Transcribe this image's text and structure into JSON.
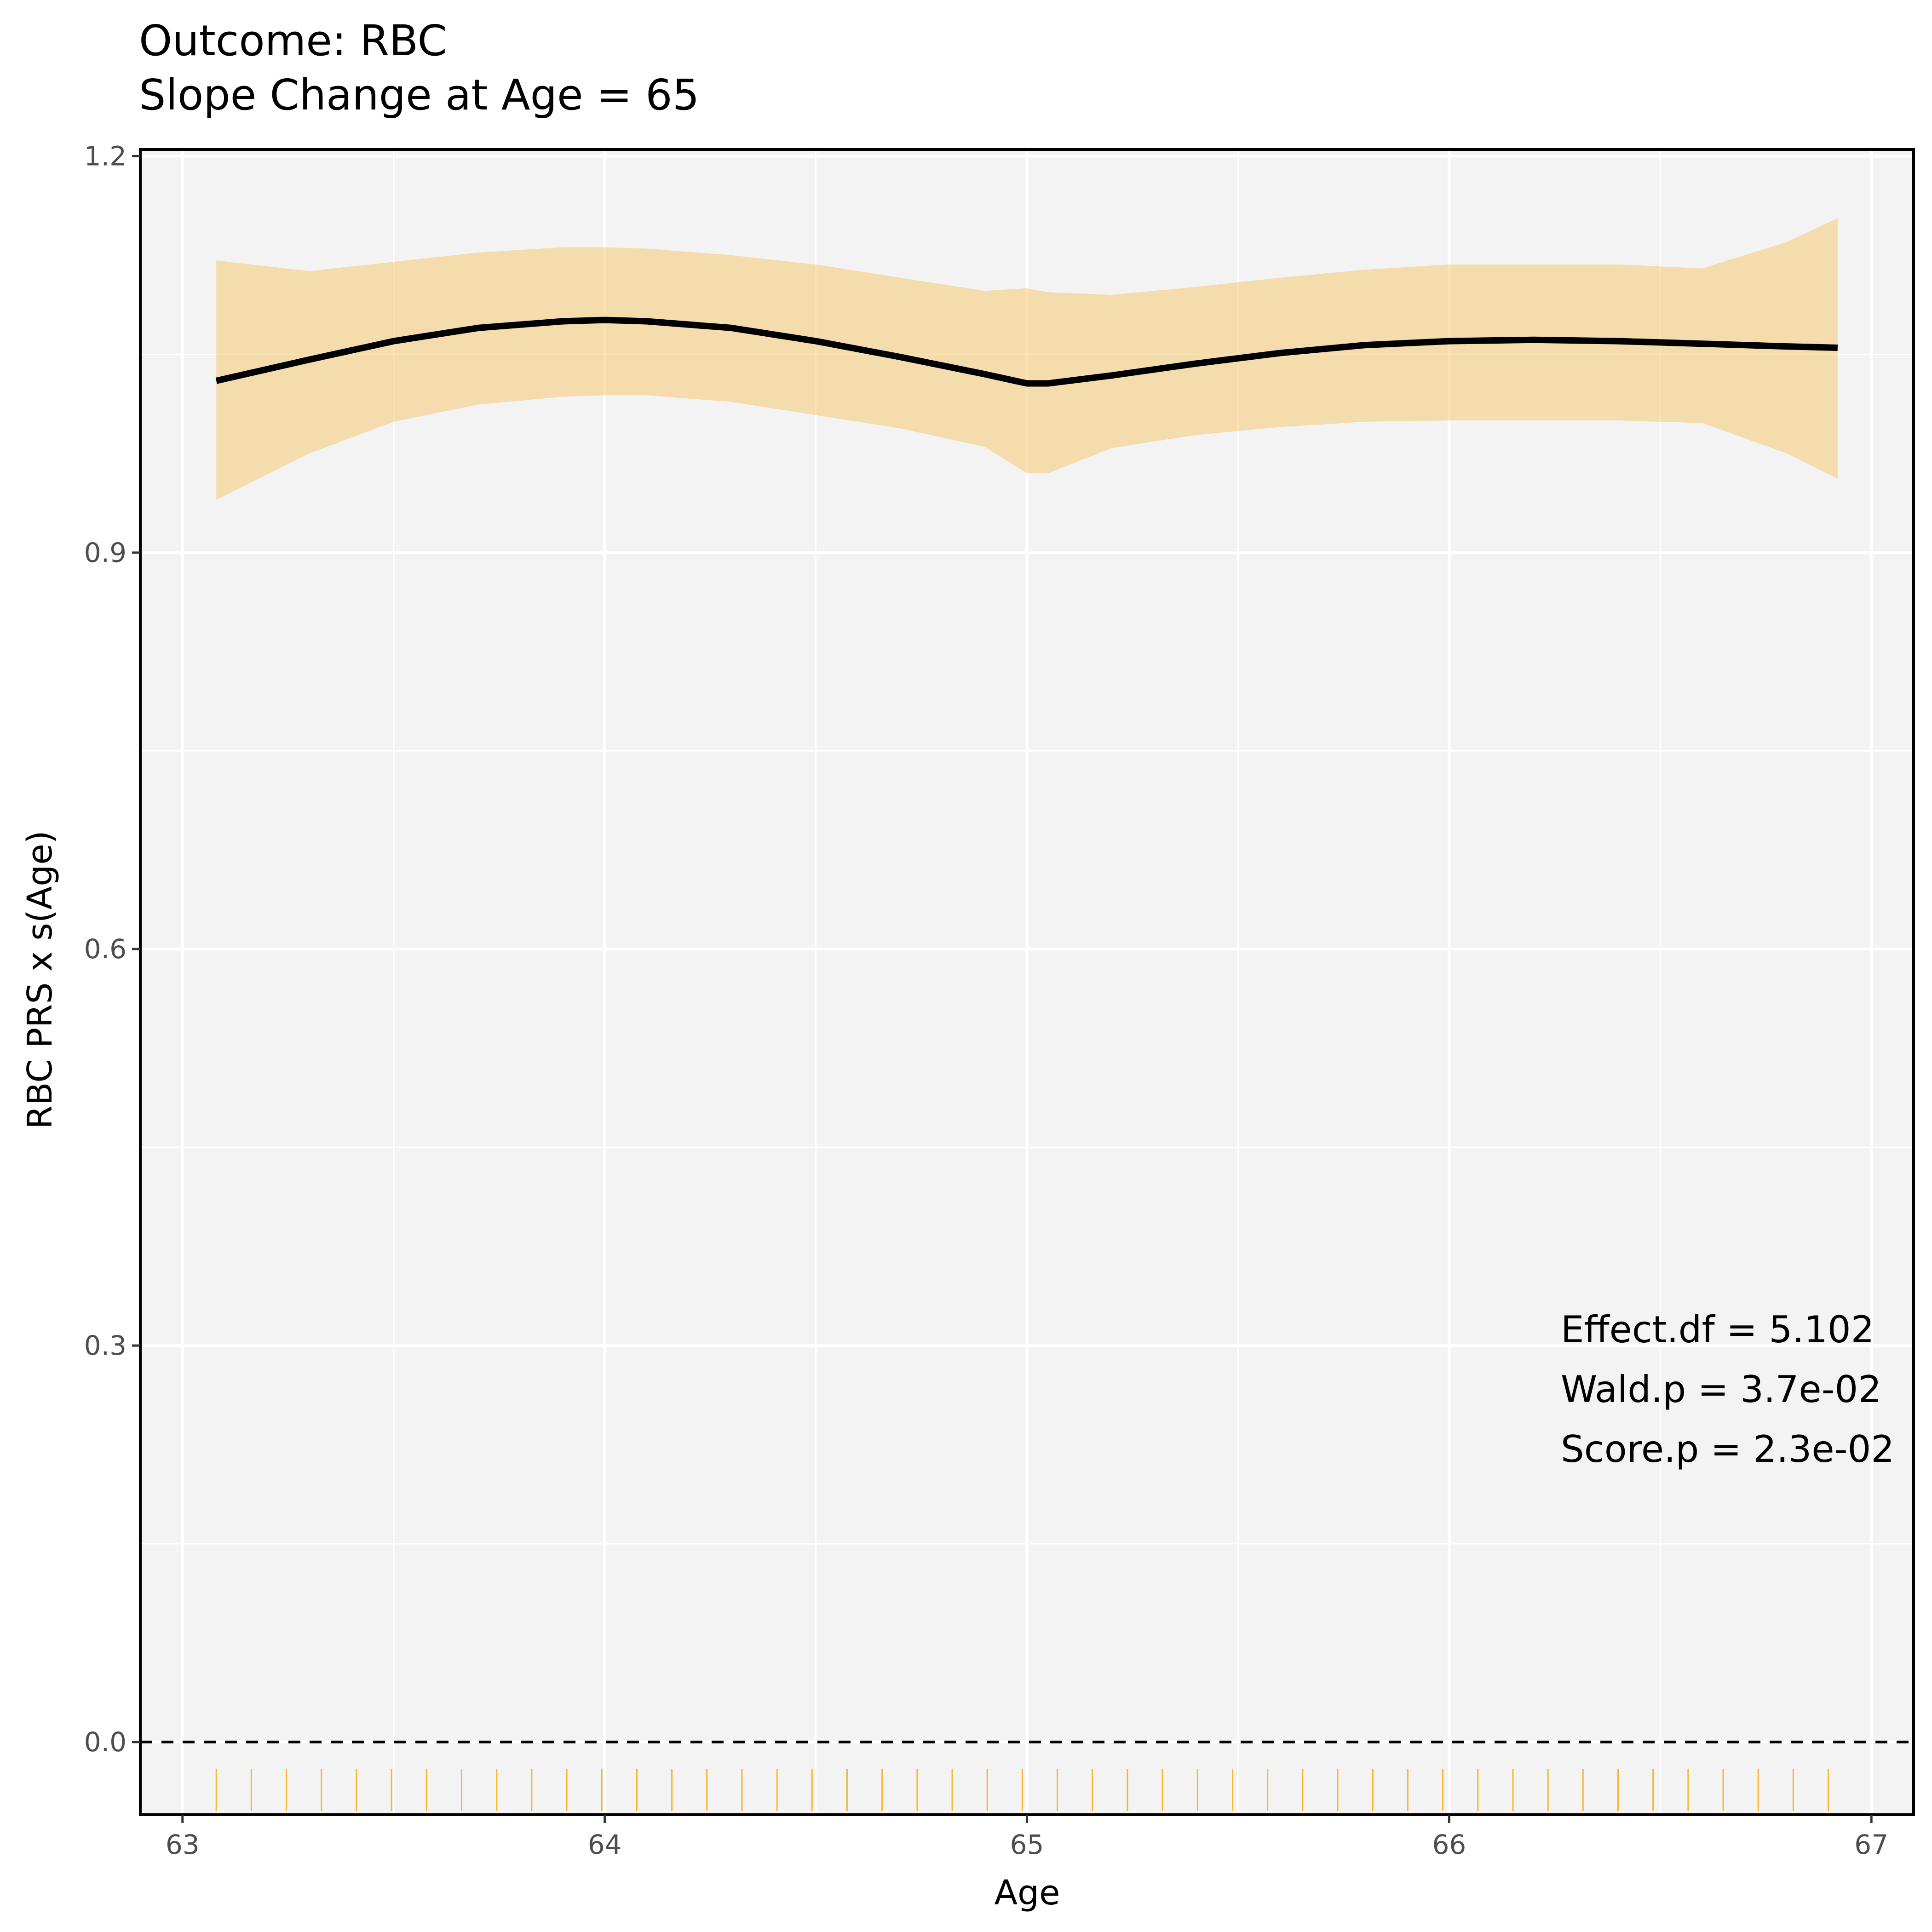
{
  "chart_data": {
    "type": "line",
    "title": "Outcome: RBC",
    "subtitle": "Slope Change at Age = 65",
    "xlabel": "Age",
    "ylabel": "RBC PRS x s(Age)",
    "xlim": [
      62.9,
      67.1
    ],
    "ylim": [
      -0.055,
      1.205
    ],
    "x_ticks": [
      63,
      64,
      65,
      66,
      67
    ],
    "x_tick_labels": [
      "63",
      "64",
      "65",
      "66",
      "67"
    ],
    "y_ticks": [
      0.0,
      0.3,
      0.6,
      0.9,
      1.2
    ],
    "y_tick_labels": [
      "0.0",
      "0.3",
      "0.6",
      "0.9",
      "1.2"
    ],
    "grid": true,
    "reference_line": {
      "y": 0,
      "style": "dashed",
      "color": "#000000"
    },
    "series": [
      {
        "type": "line",
        "color": "#000000",
        "x": [
          63.08,
          63.3,
          63.5,
          63.7,
          63.9,
          64.0,
          64.1,
          64.3,
          64.5,
          64.7,
          64.9,
          65.0,
          65.05,
          65.2,
          65.4,
          65.6,
          65.8,
          66.0,
          66.2,
          66.4,
          66.6,
          66.8,
          66.92
        ],
        "y": [
          1.03,
          1.046,
          1.06,
          1.07,
          1.075,
          1.076,
          1.075,
          1.07,
          1.06,
          1.048,
          1.035,
          1.028,
          1.028,
          1.034,
          1.043,
          1.051,
          1.057,
          1.06,
          1.061,
          1.06,
          1.058,
          1.056,
          1.055
        ]
      }
    ],
    "ribbon": {
      "color": "#f5c665",
      "opacity": 0.5,
      "x": [
        63.08,
        63.3,
        63.5,
        63.7,
        63.9,
        64.0,
        64.1,
        64.3,
        64.5,
        64.7,
        64.9,
        65.0,
        65.05,
        65.2,
        65.4,
        65.6,
        65.8,
        66.0,
        66.2,
        66.4,
        66.6,
        66.8,
        66.92
      ],
      "upper": [
        1.121,
        1.113,
        1.12,
        1.127,
        1.131,
        1.131,
        1.13,
        1.125,
        1.118,
        1.108,
        1.098,
        1.1,
        1.097,
        1.095,
        1.101,
        1.108,
        1.114,
        1.118,
        1.118,
        1.118,
        1.115,
        1.135,
        1.153
      ],
      "lower": [
        0.94,
        0.975,
        0.999,
        1.012,
        1.018,
        1.019,
        1.019,
        1.014,
        1.004,
        0.994,
        0.98,
        0.96,
        0.96,
        0.979,
        0.989,
        0.995,
        0.999,
        1.0,
        1.0,
        1.0,
        0.998,
        0.975,
        0.956
      ]
    },
    "rug": {
      "color": "#f5b731",
      "x": [
        63.08,
        63.163,
        63.246,
        63.329,
        63.412,
        63.495,
        63.578,
        63.661,
        63.744,
        63.827,
        63.91,
        63.993,
        64.076,
        64.159,
        64.242,
        64.325,
        64.408,
        64.491,
        64.574,
        64.657,
        64.74,
        64.823,
        64.906,
        64.989,
        65.072,
        65.155,
        65.238,
        65.321,
        65.404,
        65.487,
        65.57,
        65.653,
        65.736,
        65.819,
        65.902,
        65.985,
        66.068,
        66.151,
        66.234,
        66.317,
        66.4,
        66.483,
        66.566,
        66.649,
        66.732,
        66.815,
        66.898
      ]
    },
    "annotations": [
      "Effect.df = 5.102",
      "Wald.p = 3.7e-02",
      "Score.p = 2.3e-02"
    ],
    "panel_background": "#f3f3f3",
    "panel_border": "#000000"
  }
}
